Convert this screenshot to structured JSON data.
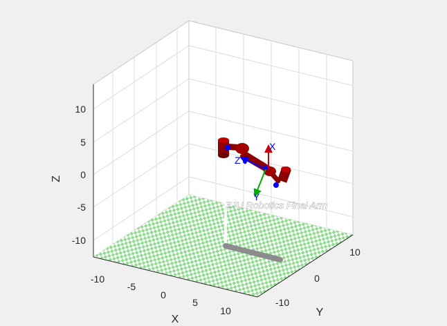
{
  "figure": {
    "robot_name": "ZJU Robotics Final Arm",
    "axes": {
      "x": {
        "label": "X",
        "ticks": [
          "-10",
          "-5",
          "0",
          "5",
          "10"
        ]
      },
      "y": {
        "label": "Y",
        "ticks": [
          "-10",
          "0",
          "10"
        ]
      },
      "z": {
        "label": "Z",
        "ticks": [
          "10",
          "5",
          "0",
          "-5",
          "-10"
        ]
      }
    },
    "frame_labels": {
      "x": "X",
      "y": "Y",
      "z": "Z"
    },
    "colors": {
      "background": "#f0f0f0",
      "pane": "#ffffff",
      "grid": "#dcdcdc",
      "floor_a": "#8edc8e",
      "floor_b": "#ffffff",
      "link": "#8b0000",
      "joint": "#a00000",
      "shadow": "#8c8c8c",
      "frame_x": "#cc0000",
      "frame_y": "#00aa00",
      "frame_z": "#0000ff",
      "frame_text": "#0000ff"
    }
  }
}
